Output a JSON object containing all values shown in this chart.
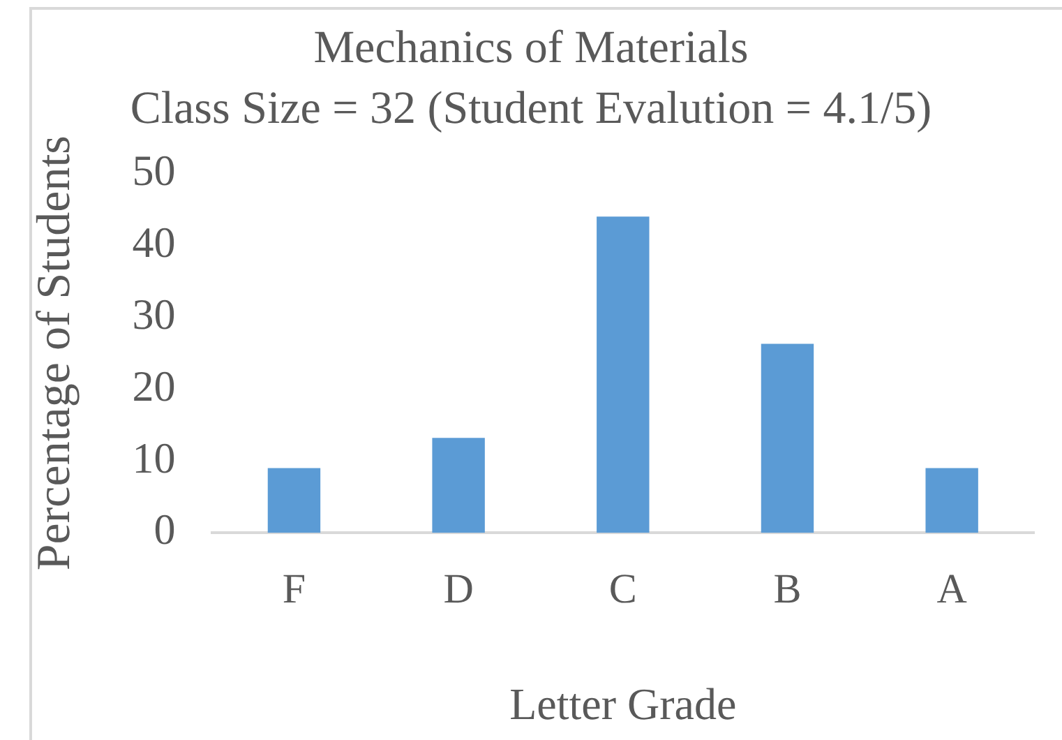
{
  "chart_data": {
    "type": "bar",
    "title": "Mechanics of Materials",
    "subtitle": "Class Size = 32 (Student Evalution = 4.1/5)",
    "xlabel": "Letter Grade",
    "ylabel": "Percentage of Students",
    "categories": [
      "F",
      "D",
      "C",
      "B",
      "A"
    ],
    "values": [
      9,
      13.2,
      44,
      26.3,
      9
    ],
    "color": "#5b9bd5",
    "ylim": [
      0,
      50
    ],
    "yticks": [
      0,
      10,
      20,
      30,
      40,
      50
    ],
    "grid": false,
    "legend": false
  }
}
